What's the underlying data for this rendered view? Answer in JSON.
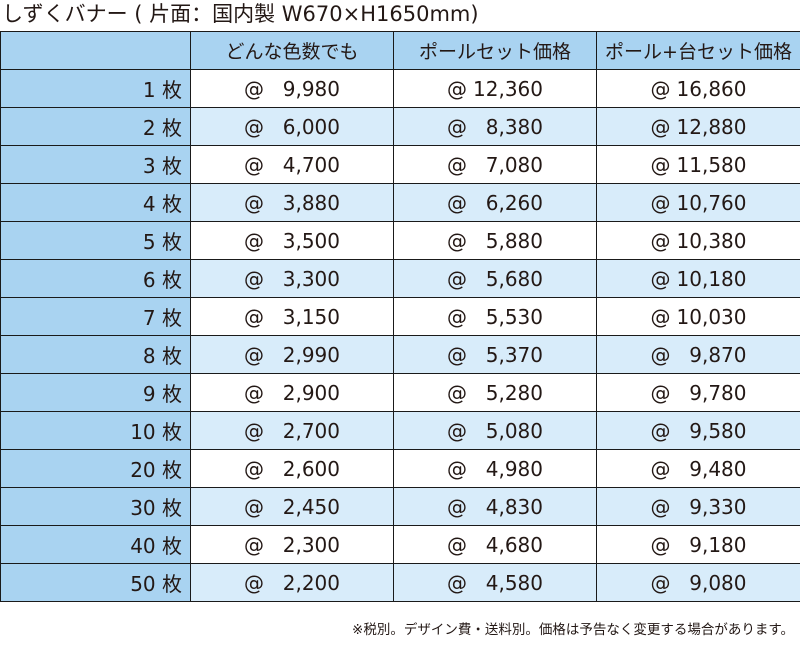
{
  "title": "しずくバナー ( 片面：国内製  W670×H1650mm)",
  "table": {
    "corner": "",
    "columns": [
      "どんな色数でも",
      "ポールセット価格",
      "ポール+台セット価格"
    ],
    "at_symbol": "@",
    "rows": [
      {
        "qty": "1 枚",
        "prices": [
          "9,980",
          "12,360",
          "16,860"
        ]
      },
      {
        "qty": "2 枚",
        "prices": [
          "6,000",
          "8,380",
          "12,880"
        ]
      },
      {
        "qty": "3 枚",
        "prices": [
          "4,700",
          "7,080",
          "11,580"
        ]
      },
      {
        "qty": "4 枚",
        "prices": [
          "3,880",
          "6,260",
          "10,760"
        ]
      },
      {
        "qty": "5 枚",
        "prices": [
          "3,500",
          "5,880",
          "10,380"
        ]
      },
      {
        "qty": "6 枚",
        "prices": [
          "3,300",
          "5,680",
          "10,180"
        ]
      },
      {
        "qty": "7 枚",
        "prices": [
          "3,150",
          "5,530",
          "10,030"
        ]
      },
      {
        "qty": "8 枚",
        "prices": [
          "2,990",
          "5,370",
          "9,870"
        ]
      },
      {
        "qty": "9 枚",
        "prices": [
          "2,900",
          "5,280",
          "9,780"
        ]
      },
      {
        "qty": "10 枚",
        "prices": [
          "2,700",
          "5,080",
          "9,580"
        ]
      },
      {
        "qty": "20 枚",
        "prices": [
          "2,600",
          "4,980",
          "9,480"
        ]
      },
      {
        "qty": "30 枚",
        "prices": [
          "2,450",
          "4,830",
          "9,330"
        ]
      },
      {
        "qty": "40 枚",
        "prices": [
          "2,300",
          "4,680",
          "9,180"
        ]
      },
      {
        "qty": "50 枚",
        "prices": [
          "2,200",
          "4,580",
          "9,080"
        ]
      }
    ]
  },
  "note": "※税別。デザイン費・送料別。価格は予告なく変更する場合があります。",
  "colors": {
    "header_bg": "#a9d3f1",
    "row_alt_bg": "#d8ecfa",
    "border": "#1a1a1a",
    "text": "#231815"
  }
}
